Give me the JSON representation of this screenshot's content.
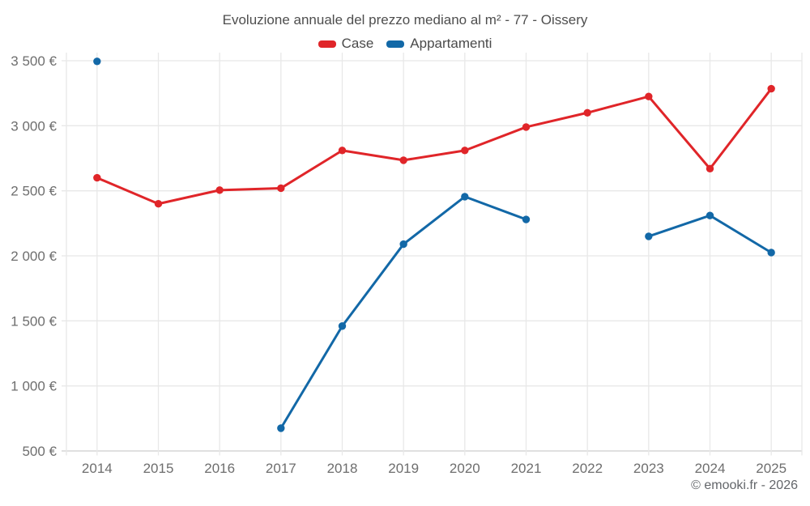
{
  "header": {
    "title": "Evoluzione annuale del prezzo mediano al m² - 77 - Oissery"
  },
  "legend": {
    "items": [
      {
        "label": "Case",
        "color": "#e02529"
      },
      {
        "label": "Appartamenti",
        "color": "#1268a7"
      }
    ]
  },
  "chart_data": {
    "type": "line",
    "title": "Evoluzione annuale del prezzo mediano al m² - 77 - Oissery",
    "categories": [
      2014,
      2015,
      2016,
      2017,
      2018,
      2019,
      2020,
      2021,
      2022,
      2023,
      2024,
      2025
    ],
    "series": [
      {
        "name": "Case",
        "color": "#e02529",
        "values": [
          2600,
          2400,
          2505,
          2520,
          2810,
          2735,
          2810,
          2990,
          3100,
          3225,
          2670,
          3285
        ]
      },
      {
        "name": "Appartamenti",
        "color": "#1268a7",
        "values": [
          3495,
          null,
          null,
          675,
          1460,
          2090,
          2455,
          2280,
          null,
          2150,
          2310,
          2025
        ]
      }
    ],
    "xlabel": "",
    "ylabel": "",
    "ylim": [
      500,
      3500
    ],
    "y_ticks": [
      {
        "value": 500,
        "label": "500 €"
      },
      {
        "value": 1000,
        "label": "1 000 €"
      },
      {
        "value": 1500,
        "label": "1 500 €"
      },
      {
        "value": 2000,
        "label": "2 000 €"
      },
      {
        "value": 2500,
        "label": "2 500 €"
      },
      {
        "value": 3000,
        "label": "3 000 €"
      },
      {
        "value": 3500,
        "label": "3 500 €"
      }
    ],
    "grid": true,
    "legend_position": "top",
    "missing_points": {
      "Appartamenti": [
        2015,
        2016,
        2022
      ]
    }
  },
  "footer": {
    "text": "© emooki.fr - 2026"
  },
  "colors": {
    "grid": "#e8e8e8",
    "axis": "#cdcdcd",
    "tick_label": "#6e6e6e",
    "title_text": "#4e4e4e"
  }
}
